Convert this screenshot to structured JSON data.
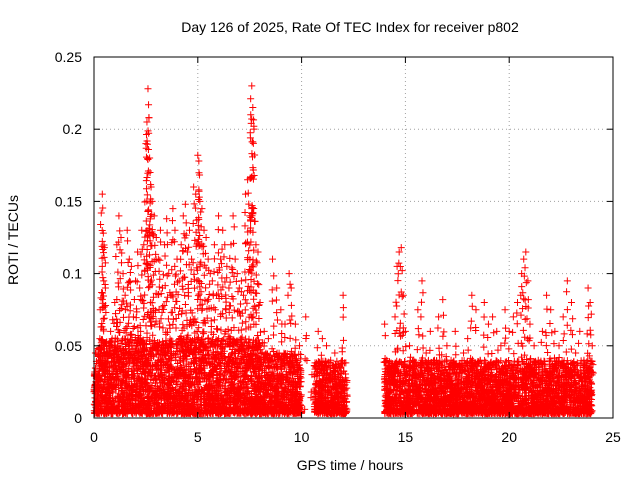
{
  "chart_data": {
    "type": "scatter",
    "title": "Day 126 of 2025, Rate Of TEC Index for receiver p802",
    "xlabel": "GPS time / hours",
    "ylabel": "ROTI / TECUs",
    "xlim": [
      0,
      25
    ],
    "ylim": [
      0,
      0.25
    ],
    "x_ticks": [
      0,
      5,
      10,
      15,
      20,
      25
    ],
    "x_tick_labels": [
      "0",
      "5",
      "10",
      "15",
      "20",
      "25"
    ],
    "y_ticks": [
      0,
      0.05,
      0.1,
      0.15,
      0.2,
      0.25
    ],
    "y_tick_labels": [
      "0",
      "0.05",
      "0.1",
      "0.15",
      "0.2",
      "0.25"
    ],
    "grid": true,
    "marker": "plus",
    "color": "#ff0000",
    "series": [
      {
        "name": "ROTI",
        "points": [
          [
            0.1,
            0.045
          ],
          [
            0.15,
            0.03
          ],
          [
            0.2,
            0.015
          ],
          [
            0.3,
            0.075
          ],
          [
            0.35,
            0.142
          ],
          [
            0.4,
            0.155
          ],
          [
            0.45,
            0.128
          ],
          [
            0.5,
            0.118
          ],
          [
            0.55,
            0.09
          ],
          [
            0.6,
            0.05
          ],
          [
            0.7,
            0.02
          ],
          [
            0.8,
            0.06
          ],
          [
            0.9,
            0.068
          ],
          [
            1.0,
            0.08
          ],
          [
            1.1,
            0.12
          ],
          [
            1.2,
            0.14
          ],
          [
            1.3,
            0.125
          ],
          [
            1.4,
            0.1
          ],
          [
            1.5,
            0.085
          ],
          [
            1.6,
            0.13
          ],
          [
            1.7,
            0.11
          ],
          [
            1.8,
            0.105
          ],
          [
            1.9,
            0.07
          ],
          [
            2.0,
            0.095
          ],
          [
            2.1,
            0.115
          ],
          [
            2.2,
            0.09
          ],
          [
            2.3,
            0.13
          ],
          [
            2.4,
            0.12
          ],
          [
            2.5,
            0.19
          ],
          [
            2.55,
            0.205
          ],
          [
            2.6,
            0.228
          ],
          [
            2.65,
            0.208
          ],
          [
            2.7,
            0.17
          ],
          [
            2.75,
            0.16
          ],
          [
            2.8,
            0.15
          ],
          [
            2.9,
            0.14
          ],
          [
            3.0,
            0.125
          ],
          [
            3.1,
            0.11
          ],
          [
            3.2,
            0.13
          ],
          [
            3.3,
            0.09
          ],
          [
            3.4,
            0.12
          ],
          [
            3.5,
            0.138
          ],
          [
            3.6,
            0.1
          ],
          [
            3.7,
            0.085
          ],
          [
            3.8,
            0.145
          ],
          [
            3.9,
            0.13
          ],
          [
            4.0,
            0.11
          ],
          [
            4.1,
            0.095
          ],
          [
            4.2,
            0.12
          ],
          [
            4.3,
            0.14
          ],
          [
            4.4,
            0.148
          ],
          [
            4.5,
            0.115
          ],
          [
            4.6,
            0.13
          ],
          [
            4.7,
            0.11
          ],
          [
            4.8,
            0.16
          ],
          [
            4.9,
            0.155
          ],
          [
            5.0,
            0.182
          ],
          [
            5.05,
            0.178
          ],
          [
            5.1,
            0.15
          ],
          [
            5.2,
            0.145
          ],
          [
            5.3,
            0.13
          ],
          [
            5.4,
            0.125
          ],
          [
            5.5,
            0.11
          ],
          [
            5.6,
            0.1
          ],
          [
            5.7,
            0.095
          ],
          [
            5.8,
            0.12
          ],
          [
            5.9,
            0.085
          ],
          [
            6.0,
            0.14
          ],
          [
            6.1,
            0.11
          ],
          [
            6.2,
            0.13
          ],
          [
            6.3,
            0.12
          ],
          [
            6.4,
            0.105
          ],
          [
            6.5,
            0.09
          ],
          [
            6.6,
            0.12
          ],
          [
            6.7,
            0.14
          ],
          [
            6.8,
            0.11
          ],
          [
            6.9,
            0.1
          ],
          [
            7.0,
            0.09
          ],
          [
            7.1,
            0.095
          ],
          [
            7.2,
            0.085
          ],
          [
            7.3,
            0.155
          ],
          [
            7.4,
            0.165
          ],
          [
            7.5,
            0.14
          ],
          [
            7.55,
            0.21
          ],
          [
            7.6,
            0.23
          ],
          [
            7.65,
            0.215
          ],
          [
            7.7,
            0.202
          ],
          [
            7.8,
            0.12
          ],
          [
            7.9,
            0.115
          ],
          [
            8.0,
            0.08
          ],
          [
            8.2,
            0.06
          ],
          [
            8.4,
            0.055
          ],
          [
            8.6,
            0.11
          ],
          [
            8.8,
            0.09
          ],
          [
            9.0,
            0.075
          ],
          [
            9.2,
            0.065
          ],
          [
            9.4,
            0.1
          ],
          [
            9.5,
            0.09
          ],
          [
            9.7,
            0.065
          ],
          [
            9.9,
            0.05
          ],
          [
            10.2,
            0.07
          ],
          [
            10.5,
            0.03
          ],
          [
            10.8,
            0.06
          ],
          [
            11.0,
            0.055
          ],
          [
            11.2,
            0.05
          ],
          [
            11.4,
            0.04
          ],
          [
            11.6,
            0.045
          ],
          [
            11.8,
            0.035
          ],
          [
            12.0,
            0.085
          ],
          [
            12.1,
            0.02
          ],
          [
            14.0,
            0.065
          ],
          [
            14.1,
            0.04
          ],
          [
            14.3,
            0.035
          ],
          [
            14.5,
            0.07
          ],
          [
            14.6,
            0.105
          ],
          [
            14.7,
            0.115
          ],
          [
            14.8,
            0.118
          ],
          [
            14.9,
            0.085
          ],
          [
            15.0,
            0.06
          ],
          [
            15.2,
            0.05
          ],
          [
            15.4,
            0.04
          ],
          [
            15.6,
            0.075
          ],
          [
            15.8,
            0.095
          ],
          [
            16.0,
            0.045
          ],
          [
            16.2,
            0.06
          ],
          [
            16.4,
            0.04
          ],
          [
            16.6,
            0.07
          ],
          [
            16.8,
            0.082
          ],
          [
            17.0,
            0.05
          ],
          [
            17.2,
            0.04
          ],
          [
            17.4,
            0.06
          ],
          [
            17.6,
            0.035
          ],
          [
            17.8,
            0.045
          ],
          [
            18.0,
            0.055
          ],
          [
            18.2,
            0.085
          ],
          [
            18.4,
            0.075
          ],
          [
            18.6,
            0.04
          ],
          [
            18.8,
            0.08
          ],
          [
            19.0,
            0.065
          ],
          [
            19.2,
            0.07
          ],
          [
            19.4,
            0.06
          ],
          [
            19.6,
            0.05
          ],
          [
            19.8,
            0.075
          ],
          [
            20.0,
            0.06
          ],
          [
            20.2,
            0.07
          ],
          [
            20.4,
            0.08
          ],
          [
            20.6,
            0.1
          ],
          [
            20.7,
            0.11
          ],
          [
            20.8,
            0.115
          ],
          [
            20.9,
            0.095
          ],
          [
            21.0,
            0.065
          ],
          [
            21.2,
            0.05
          ],
          [
            21.4,
            0.04
          ],
          [
            21.6,
            0.06
          ],
          [
            21.8,
            0.085
          ],
          [
            22.0,
            0.075
          ],
          [
            22.2,
            0.06
          ],
          [
            22.4,
            0.05
          ],
          [
            22.6,
            0.07
          ],
          [
            22.8,
            0.095
          ],
          [
            23.0,
            0.08
          ],
          [
            23.2,
            0.045
          ],
          [
            23.4,
            0.06
          ],
          [
            23.6,
            0.04
          ],
          [
            23.8,
            0.09
          ],
          [
            23.9,
            0.08
          ],
          [
            24.0,
            0.05
          ]
        ],
        "dense_bands": [
          {
            "x_start": 0.0,
            "x_end": 8.2,
            "y_min": 0.003,
            "y_max": 0.055
          },
          {
            "x_start": 8.2,
            "x_end": 10.0,
            "y_min": 0.003,
            "y_max": 0.045
          },
          {
            "x_start": 10.6,
            "x_end": 12.2,
            "y_min": 0.003,
            "y_max": 0.04
          },
          {
            "x_start": 14.0,
            "x_end": 24.0,
            "y_min": 0.003,
            "y_max": 0.04
          }
        ]
      }
    ]
  }
}
